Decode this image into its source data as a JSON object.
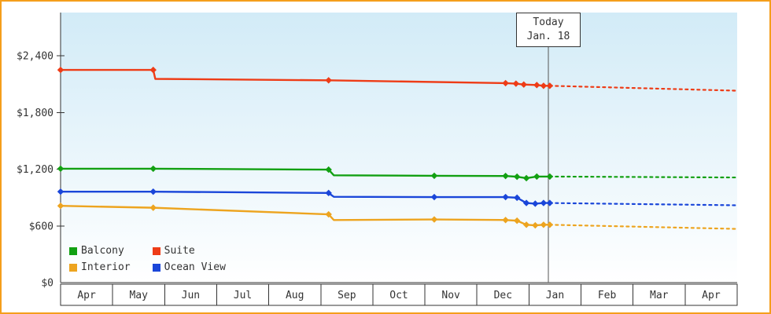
{
  "frame": {
    "border_color": "#f59e1b",
    "background": "#ffffff"
  },
  "today_marker": {
    "line1": "Today",
    "line2": "Jan. 18",
    "month_position": 9.37
  },
  "chart_data": {
    "type": "line",
    "title": "",
    "x_axis": {
      "months": [
        "Apr",
        "May",
        "Jun",
        "Jul",
        "Aug",
        "Sep",
        "Oct",
        "Nov",
        "Dec",
        "Jan",
        "Feb",
        "Mar",
        "Apr"
      ]
    },
    "y_axis": {
      "tick_labels": [
        "$0",
        "$600",
        "$1,200",
        "$1,800",
        "$2,400"
      ],
      "tick_values": [
        0,
        600,
        1200,
        1800,
        2400
      ],
      "unit": "USD"
    },
    "plot": {
      "background_top": "#d2ebf7",
      "background_bottom": "#ffffff"
    },
    "series": [
      {
        "name": "Suite",
        "color": "#ee3c17",
        "solid": [
          [
            0,
            2250
          ],
          [
            1.78,
            2250
          ],
          [
            1.82,
            2155
          ],
          [
            5.15,
            2140
          ],
          [
            8.55,
            2110
          ],
          [
            8.75,
            2105
          ],
          [
            8.9,
            2095
          ],
          [
            9.15,
            2090
          ],
          [
            9.28,
            2082
          ],
          [
            9.4,
            2082
          ]
        ],
        "markers": [
          [
            0,
            2250
          ],
          [
            1.78,
            2250
          ],
          [
            5.15,
            2140
          ],
          [
            8.55,
            2110
          ],
          [
            8.75,
            2105
          ],
          [
            8.9,
            2095
          ],
          [
            9.15,
            2090
          ],
          [
            9.28,
            2082
          ],
          [
            9.4,
            2082
          ]
        ],
        "dotted": [
          [
            9.4,
            2082
          ],
          [
            13,
            2030
          ]
        ]
      },
      {
        "name": "Balcony",
        "color": "#12a012",
        "solid": [
          [
            0,
            1205
          ],
          [
            1.78,
            1205
          ],
          [
            5.15,
            1195
          ],
          [
            5.25,
            1135
          ],
          [
            7.18,
            1130
          ],
          [
            8.55,
            1128
          ],
          [
            8.77,
            1120
          ],
          [
            8.95,
            1105
          ],
          [
            9.15,
            1122
          ],
          [
            9.4,
            1122
          ]
        ],
        "markers": [
          [
            0,
            1205
          ],
          [
            1.78,
            1205
          ],
          [
            5.15,
            1195
          ],
          [
            7.18,
            1130
          ],
          [
            8.55,
            1128
          ],
          [
            8.77,
            1120
          ],
          [
            8.95,
            1105
          ],
          [
            9.15,
            1122
          ],
          [
            9.4,
            1122
          ]
        ],
        "dotted": [
          [
            9.4,
            1122
          ],
          [
            13,
            1112
          ]
        ]
      },
      {
        "name": "Ocean View",
        "color": "#1a46d9",
        "solid": [
          [
            0,
            962
          ],
          [
            1.78,
            962
          ],
          [
            5.15,
            948
          ],
          [
            5.25,
            908
          ],
          [
            7.18,
            905
          ],
          [
            8.55,
            905
          ],
          [
            8.77,
            898
          ],
          [
            8.95,
            842
          ],
          [
            9.12,
            835
          ],
          [
            9.28,
            842
          ],
          [
            9.4,
            842
          ]
        ],
        "markers": [
          [
            0,
            962
          ],
          [
            1.78,
            962
          ],
          [
            5.15,
            948
          ],
          [
            7.18,
            905
          ],
          [
            8.55,
            905
          ],
          [
            8.77,
            898
          ],
          [
            8.95,
            842
          ],
          [
            9.12,
            835
          ],
          [
            9.28,
            842
          ],
          [
            9.4,
            842
          ]
        ],
        "dotted": [
          [
            9.4,
            842
          ],
          [
            13,
            818
          ]
        ]
      },
      {
        "name": "Interior",
        "color": "#eda41f",
        "solid": [
          [
            0,
            812
          ],
          [
            1.78,
            792
          ],
          [
            5.15,
            722
          ],
          [
            5.25,
            662
          ],
          [
            7.18,
            668
          ],
          [
            8.55,
            662
          ],
          [
            8.77,
            655
          ],
          [
            8.95,
            612
          ],
          [
            9.12,
            606
          ],
          [
            9.28,
            612
          ],
          [
            9.4,
            612
          ]
        ],
        "markers": [
          [
            0,
            812
          ],
          [
            1.78,
            792
          ],
          [
            5.15,
            722
          ],
          [
            7.18,
            668
          ],
          [
            8.55,
            662
          ],
          [
            8.77,
            655
          ],
          [
            8.95,
            612
          ],
          [
            9.12,
            606
          ],
          [
            9.28,
            612
          ],
          [
            9.4,
            612
          ]
        ],
        "dotted": [
          [
            9.4,
            612
          ],
          [
            13,
            568
          ]
        ]
      }
    ],
    "legend": {
      "position": "bottom-left",
      "order": [
        "Balcony",
        "Suite",
        "Interior",
        "Ocean View"
      ]
    }
  }
}
